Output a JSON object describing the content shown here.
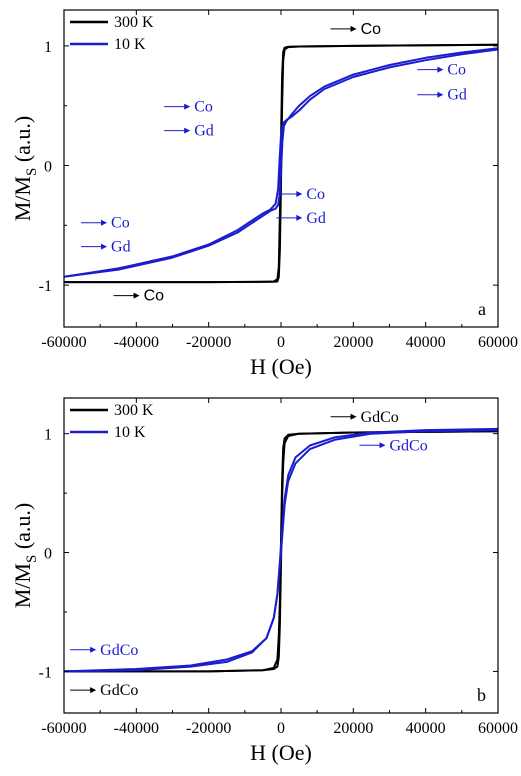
{
  "colors": {
    "black": "#000000",
    "blue": "#1c1ccf",
    "frame": "#000000"
  },
  "chart_data": [
    {
      "panel": "a",
      "type": "line",
      "xlabel": "H (Oe)",
      "ylabel": "M/M",
      "ylabel_sub": "S",
      "ylabel_unit": " (a.u.)",
      "xlim": [
        -60000,
        60000
      ],
      "ylim": [
        -1.35,
        1.3
      ],
      "xticks": [
        -60000,
        -40000,
        -20000,
        0,
        20000,
        40000,
        60000
      ],
      "xtick_labels": [
        "-60000",
        "-40000",
        "-20000",
        "0",
        "20000",
        "40000",
        "60000"
      ],
      "yticks": [
        -1,
        0,
        1
      ],
      "ytick_labels": [
        "-1",
        "0",
        "1"
      ],
      "legend": {
        "position": "top-left",
        "entries": [
          "300 K",
          "10 K"
        ]
      },
      "series": [
        {
          "name": "300 K",
          "color": "#000000",
          "branches": [
            {
              "x": [
                -60000,
                -20000,
                -5000,
                -2000,
                -1000,
                -600,
                -300,
                0,
                300,
                600,
                1000,
                2000,
                5000,
                20000,
                60000
              ],
              "y": [
                -0.975,
                -0.975,
                -0.972,
                -0.97,
                -0.95,
                -0.85,
                -0.4,
                0.2,
                0.75,
                0.95,
                0.985,
                0.993,
                0.995,
                1.0,
                1.01
              ]
            },
            {
              "x": [
                60000,
                20000,
                5000,
                2000,
                1000,
                600,
                300,
                0,
                -300,
                -600,
                -1000,
                -2000,
                -5000,
                -20000,
                -60000
              ],
              "y": [
                1.01,
                1.0,
                0.995,
                0.99,
                0.97,
                0.88,
                0.5,
                -0.15,
                -0.7,
                -0.93,
                -0.97,
                -0.972,
                -0.973,
                -0.975,
                -0.975
              ]
            }
          ]
        },
        {
          "name": "10 K",
          "color": "#1c1ccf",
          "branches": [
            {
              "x": [
                -60000,
                -45000,
                -30000,
                -20000,
                -12000,
                -8000,
                -5000,
                -3000,
                -1500,
                -800,
                -400,
                0,
                400,
                800,
                1500,
                3000,
                5000,
                8000,
                12000,
                20000,
                30000,
                40000,
                50000,
                60000
              ],
              "y": [
                -0.93,
                -0.86,
                -0.76,
                -0.66,
                -0.54,
                -0.46,
                -0.4,
                -0.37,
                -0.32,
                -0.2,
                0.05,
                0.25,
                0.32,
                0.36,
                0.38,
                0.41,
                0.46,
                0.55,
                0.64,
                0.74,
                0.82,
                0.88,
                0.93,
                0.97
              ]
            },
            {
              "x": [
                60000,
                50000,
                40000,
                30000,
                20000,
                12000,
                8000,
                5000,
                3000,
                1500,
                800,
                400,
                0,
                -400,
                -800,
                -1500,
                -3000,
                -5000,
                -8000,
                -12000,
                -20000,
                -30000,
                -45000,
                -60000
              ],
              "y": [
                0.98,
                0.945,
                0.9,
                0.84,
                0.76,
                0.66,
                0.58,
                0.5,
                0.43,
                0.37,
                0.33,
                0.2,
                -0.05,
                -0.25,
                -0.33,
                -0.36,
                -0.38,
                -0.42,
                -0.48,
                -0.56,
                -0.67,
                -0.77,
                -0.87,
                -0.93
              ]
            }
          ]
        }
      ],
      "annotations": [
        {
          "text": "Co",
          "x": 22000,
          "y": 1.1,
          "color": "#000000",
          "font": "sans"
        },
        {
          "text": "Co",
          "x": -38000,
          "y": -1.13,
          "color": "#000000",
          "font": "sans"
        },
        {
          "text": "Co",
          "x": -24000,
          "y": 0.45,
          "color": "#1c1ccf",
          "font": "serif"
        },
        {
          "text": "Gd",
          "x": -24000,
          "y": 0.25,
          "color": "#1c1ccf",
          "font": "serif"
        },
        {
          "text": "Co",
          "x": 46000,
          "y": 0.76,
          "color": "#1c1ccf",
          "font": "serif"
        },
        {
          "text": "Gd",
          "x": 46000,
          "y": 0.55,
          "color": "#1c1ccf",
          "font": "serif"
        },
        {
          "text": "Co",
          "x": 7000,
          "y": -0.28,
          "color": "#1c1ccf",
          "font": "serif"
        },
        {
          "text": "Gd",
          "x": 7000,
          "y": -0.48,
          "color": "#1c1ccf",
          "font": "serif"
        },
        {
          "text": "Co",
          "x": -47000,
          "y": -0.52,
          "color": "#1c1ccf",
          "font": "serif"
        },
        {
          "text": "Gd",
          "x": -47000,
          "y": -0.72,
          "color": "#1c1ccf",
          "font": "serif"
        }
      ],
      "panel_label": "a"
    },
    {
      "panel": "b",
      "type": "line",
      "xlabel": "H (Oe)",
      "ylabel": "M/M",
      "ylabel_sub": "S",
      "ylabel_unit": " (a.u.)",
      "xlim": [
        -60000,
        60000
      ],
      "ylim": [
        -1.35,
        1.3
      ],
      "xticks": [
        -60000,
        -40000,
        -20000,
        0,
        20000,
        40000,
        60000
      ],
      "xtick_labels": [
        "-60000",
        "-40000",
        "-20000",
        "0",
        "20000",
        "40000",
        "60000"
      ],
      "yticks": [
        -1,
        0,
        1
      ],
      "ytick_labels": [
        "-1",
        "0",
        "1"
      ],
      "legend": {
        "position": "top-left",
        "entries": [
          "300 K",
          "10 K"
        ]
      },
      "series": [
        {
          "name": "300 K",
          "color": "#000000",
          "branches": [
            {
              "x": [
                -60000,
                -20000,
                -5000,
                -2000,
                -1000,
                -600,
                -300,
                0,
                300,
                600,
                1000,
                2000,
                5000,
                20000,
                60000
              ],
              "y": [
                -1.0,
                -1.0,
                -0.99,
                -0.97,
                -0.9,
                -0.7,
                -0.4,
                0.1,
                0.6,
                0.88,
                0.96,
                0.99,
                1.0,
                1.01,
                1.02
              ]
            },
            {
              "x": [
                60000,
                20000,
                5000,
                2000,
                1000,
                600,
                300,
                0,
                -300,
                -600,
                -1000,
                -2000,
                -5000,
                -20000,
                -60000
              ],
              "y": [
                1.02,
                1.01,
                1.0,
                0.98,
                0.92,
                0.75,
                0.45,
                -0.1,
                -0.6,
                -0.88,
                -0.96,
                -0.98,
                -0.99,
                -1.0,
                -1.0
              ]
            }
          ]
        },
        {
          "name": "10 K",
          "color": "#1c1ccf",
          "branches": [
            {
              "x": [
                -60000,
                -40000,
                -25000,
                -15000,
                -8000,
                -4000,
                -2000,
                -1000,
                0,
                1000,
                2000,
                4000,
                8000,
                15000,
                25000,
                40000,
                60000
              ],
              "y": [
                -1.0,
                -0.98,
                -0.95,
                -0.9,
                -0.83,
                -0.72,
                -0.55,
                -0.35,
                0.0,
                0.4,
                0.6,
                0.75,
                0.87,
                0.95,
                1.0,
                1.02,
                1.03
              ]
            },
            {
              "x": [
                60000,
                40000,
                25000,
                15000,
                8000,
                4000,
                2000,
                1000,
                0,
                -1000,
                -2000,
                -4000,
                -8000,
                -15000,
                -25000,
                -40000,
                -60000
              ],
              "y": [
                1.04,
                1.03,
                1.01,
                0.97,
                0.9,
                0.8,
                0.65,
                0.45,
                0.05,
                -0.35,
                -0.55,
                -0.72,
                -0.84,
                -0.92,
                -0.96,
                -0.99,
                -1.0
              ]
            }
          ]
        }
      ],
      "annotations": [
        {
          "text": "GdCo",
          "x": 22000,
          "y": 1.1,
          "color": "#000000",
          "font": "serif"
        },
        {
          "text": "GdCo",
          "x": 30000,
          "y": 0.86,
          "color": "#1c1ccf",
          "font": "serif"
        },
        {
          "text": "GdCo",
          "x": -50000,
          "y": -0.86,
          "color": "#1c1ccf",
          "font": "serif"
        },
        {
          "text": "GdCo",
          "x": -50000,
          "y": -1.2,
          "color": "#000000",
          "font": "serif"
        }
      ],
      "panel_label": "b"
    }
  ]
}
